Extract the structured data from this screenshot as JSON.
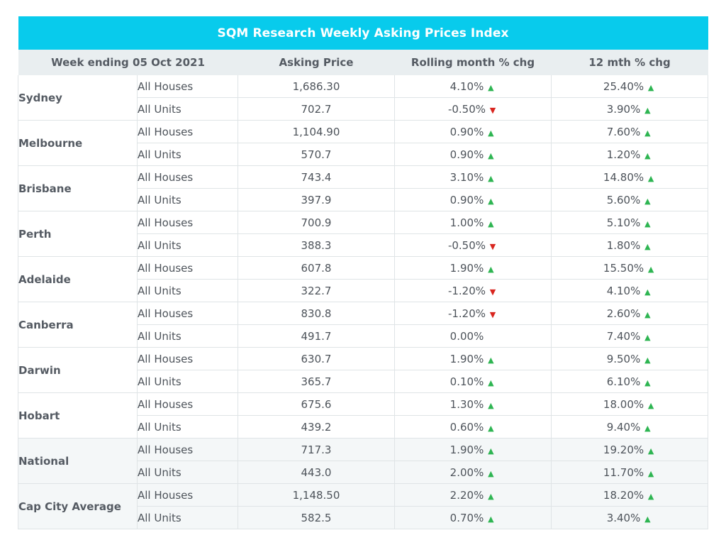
{
  "title": "SQM Research Weekly Asking Prices Index",
  "columns": [
    "Week ending 05 Oct 2021",
    "Asking Price",
    "Rolling month % chg",
    "12 mth % chg"
  ],
  "colors": {
    "header": "#08cbec",
    "up": "#2eb552",
    "down": "#d9261f"
  },
  "chart_data": {
    "type": "table",
    "title": "SQM Research Weekly Asking Prices Index",
    "columns": [
      "Week ending 05 Oct 2021",
      "Asking Price",
      "Rolling month % chg",
      "12 mth % chg"
    ],
    "groups": [
      {
        "city": "Sydney",
        "shaded": false,
        "rows": [
          {
            "type": "All Houses",
            "price": "1,686.30",
            "month": "4.10%",
            "month_dir": "up",
            "year": "25.40%",
            "year_dir": "up"
          },
          {
            "type": "All Units",
            "price": "702.7",
            "month": "-0.50%",
            "month_dir": "down",
            "year": "3.90%",
            "year_dir": "up"
          }
        ]
      },
      {
        "city": "Melbourne",
        "shaded": false,
        "rows": [
          {
            "type": "All Houses",
            "price": "1,104.90",
            "month": "0.90%",
            "month_dir": "up",
            "year": "7.60%",
            "year_dir": "up"
          },
          {
            "type": "All Units",
            "price": "570.7",
            "month": "0.90%",
            "month_dir": "up",
            "year": "1.20%",
            "year_dir": "up"
          }
        ]
      },
      {
        "city": "Brisbane",
        "shaded": false,
        "rows": [
          {
            "type": "All Houses",
            "price": "743.4",
            "month": "3.10%",
            "month_dir": "up",
            "year": "14.80%",
            "year_dir": "up"
          },
          {
            "type": "All Units",
            "price": "397.9",
            "month": "0.90%",
            "month_dir": "up",
            "year": "5.60%",
            "year_dir": "up"
          }
        ]
      },
      {
        "city": "Perth",
        "shaded": false,
        "rows": [
          {
            "type": "All Houses",
            "price": "700.9",
            "month": "1.00%",
            "month_dir": "up",
            "year": "5.10%",
            "year_dir": "up"
          },
          {
            "type": "All Units",
            "price": "388.3",
            "month": "-0.50%",
            "month_dir": "down",
            "year": "1.80%",
            "year_dir": "up"
          }
        ]
      },
      {
        "city": "Adelaide",
        "shaded": false,
        "rows": [
          {
            "type": "All Houses",
            "price": "607.8",
            "month": "1.90%",
            "month_dir": "up",
            "year": "15.50%",
            "year_dir": "up"
          },
          {
            "type": "All Units",
            "price": "322.7",
            "month": "-1.20%",
            "month_dir": "down",
            "year": "4.10%",
            "year_dir": "up"
          }
        ]
      },
      {
        "city": "Canberra",
        "shaded": false,
        "rows": [
          {
            "type": "All Houses",
            "price": "830.8",
            "month": "-1.20%",
            "month_dir": "down",
            "year": "2.60%",
            "year_dir": "up"
          },
          {
            "type": "All Units",
            "price": "491.7",
            "month": "0.00%",
            "month_dir": "none",
            "year": "7.40%",
            "year_dir": "up"
          }
        ]
      },
      {
        "city": "Darwin",
        "shaded": false,
        "rows": [
          {
            "type": "All Houses",
            "price": "630.7",
            "month": "1.90%",
            "month_dir": "up",
            "year": "9.50%",
            "year_dir": "up"
          },
          {
            "type": "All Units",
            "price": "365.7",
            "month": "0.10%",
            "month_dir": "up",
            "year": "6.10%",
            "year_dir": "up"
          }
        ]
      },
      {
        "city": "Hobart",
        "shaded": false,
        "rows": [
          {
            "type": "All Houses",
            "price": "675.6",
            "month": "1.30%",
            "month_dir": "up",
            "year": "18.00%",
            "year_dir": "up"
          },
          {
            "type": "All Units",
            "price": "439.2",
            "month": "0.60%",
            "month_dir": "up",
            "year": "9.40%",
            "year_dir": "up"
          }
        ]
      },
      {
        "city": "National",
        "shaded": true,
        "rows": [
          {
            "type": "All Houses",
            "price": "717.3",
            "month": "1.90%",
            "month_dir": "up",
            "year": "19.20%",
            "year_dir": "up"
          },
          {
            "type": "All Units",
            "price": "443.0",
            "month": "2.00%",
            "month_dir": "up",
            "year": "11.70%",
            "year_dir": "up"
          }
        ]
      },
      {
        "city": "Cap City Average",
        "shaded": true,
        "rows": [
          {
            "type": "All Houses",
            "price": "1,148.50",
            "month": "2.20%",
            "month_dir": "up",
            "year": "18.20%",
            "year_dir": "up"
          },
          {
            "type": "All Units",
            "price": "582.5",
            "month": "0.70%",
            "month_dir": "up",
            "year": "3.40%",
            "year_dir": "up"
          }
        ]
      }
    ]
  }
}
